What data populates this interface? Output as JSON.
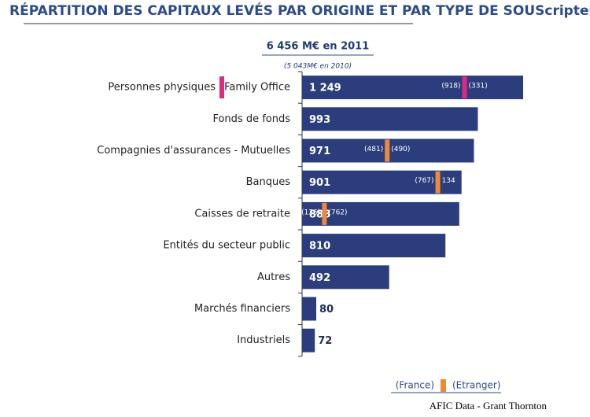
{
  "chart_data": {
    "type": "bar",
    "orientation": "horizontal",
    "title": "RÉPARTITION DES CAPITAUX LEVÉS PAR ORIGINE ET PAR TYPE DE SOUScripteurs",
    "subtitle": "6 456 M€ en 2011",
    "note": "(5 043M€ en 2010)",
    "source": "AFIC Data - Grant Thornton",
    "categories": [
      [
        "Personnes physiques",
        "Family Office"
      ],
      [
        "Fonds de fonds"
      ],
      [
        "Compagnies d'assurances - Mutuelles"
      ],
      [
        "Banques"
      ],
      [
        "Caisses de retraite"
      ],
      [
        "Entités du secteur public"
      ],
      [
        "Autres"
      ],
      [
        "Marchés financiers"
      ],
      [
        "Industriels"
      ]
    ],
    "values": [
      1249,
      993,
      971,
      901,
      888,
      810,
      492,
      80,
      72
    ],
    "value_labels": [
      "1 249",
      "993",
      "971",
      "901",
      "888",
      "810",
      "492",
      "80",
      "72"
    ],
    "color": "#2b3d7d",
    "xlim": [
      0,
      1249
    ],
    "france": {
      "values": [
        918,
        null,
        481,
        767,
        126,
        null,
        null,
        null,
        null
      ],
      "value_labels": [
        "(918)",
        null,
        "(481)",
        "(767)",
        "(126)",
        null,
        null,
        null,
        null
      ]
    },
    "etranger": {
      "values": [
        331,
        null,
        490,
        134,
        762,
        null,
        null,
        null,
        null
      ],
      "value_labels": [
        "(331)",
        null,
        "(490)",
        "134",
        "(762)",
        null,
        null,
        null,
        null
      ]
    },
    "marker_colors": [
      "#e0287f",
      null,
      "#ee8a35",
      "#ee8a35",
      "#ee8a35",
      null,
      null,
      null,
      null
    ],
    "legend": {
      "france": "(France)",
      "etranger": "(Etranger)",
      "color": "#ee8a35"
    }
  }
}
